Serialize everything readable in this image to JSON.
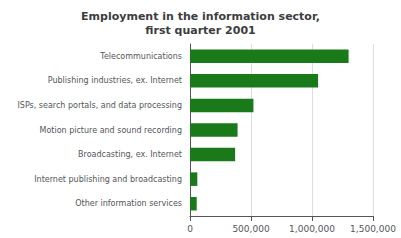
{
  "chart_data": {
    "type": "bar",
    "orientation": "horizontal",
    "title": "Employment in the information sector,\nfirst quarter 2001",
    "categories": [
      "Other information services",
      "Internet publishing and broadcasting",
      "Broadcasting, ex. Internet",
      "Motion picture and sound recording",
      "ISPs, search portals, and data processing",
      "Publishing industries, ex. Internet",
      "Telecommunications"
    ],
    "values": [
      55000,
      60000,
      370000,
      390000,
      520000,
      1050000,
      1300000
    ],
    "color": "#1a7a1a",
    "xlim": [
      0,
      1500000
    ],
    "xticks": [
      0,
      {
        "value": 500000,
        "label": "500,000"
      },
      {
        "value": 1000000,
        "label": "1,000,000"
      },
      {
        "value": 1500000,
        "label": "1,500,000"
      }
    ],
    "grid": true
  }
}
